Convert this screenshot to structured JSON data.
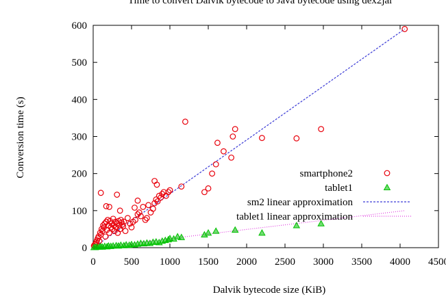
{
  "chart_data": {
    "type": "scatter",
    "title": "Time to convert Dalvik bytecode to Java bytecode using dex2jar",
    "xlabel": "Dalvik bytecode size (KiB)",
    "ylabel": "Conversion time (s)",
    "xlim": [
      0,
      4500
    ],
    "ylim": [
      0,
      600
    ],
    "xticks": [
      0,
      500,
      1000,
      1500,
      2000,
      2500,
      3000,
      3500,
      4000,
      4500
    ],
    "yticks": [
      0,
      100,
      200,
      300,
      400,
      500,
      600
    ],
    "legend_position": "lower-right, inside plot",
    "colors": {
      "smartphone2": "#e8000b",
      "tablet1": "#00c000",
      "sm2_fit": "#3b3bd6",
      "tablet1_fit": "#e040e0"
    },
    "series": [
      {
        "name": "smartphone2",
        "marker": "circle",
        "points": [
          [
            10,
            5
          ],
          [
            20,
            8
          ],
          [
            30,
            10
          ],
          [
            40,
            15
          ],
          [
            50,
            20
          ],
          [
            60,
            25
          ],
          [
            70,
            30
          ],
          [
            80,
            18
          ],
          [
            90,
            40
          ],
          [
            100,
            35
          ],
          [
            110,
            50
          ],
          [
            120,
            45
          ],
          [
            130,
            60
          ],
          [
            140,
            55
          ],
          [
            150,
            65
          ],
          [
            160,
            30
          ],
          [
            170,
            70
          ],
          [
            180,
            48
          ],
          [
            190,
            75
          ],
          [
            200,
            60
          ],
          [
            210,
            40
          ],
          [
            220,
            72
          ],
          [
            230,
            55
          ],
          [
            240,
            65
          ],
          [
            250,
            50
          ],
          [
            260,
            78
          ],
          [
            270,
            60
          ],
          [
            280,
            45
          ],
          [
            290,
            70
          ],
          [
            300,
            55
          ],
          [
            310,
            65
          ],
          [
            320,
            40
          ],
          [
            330,
            72
          ],
          [
            340,
            60
          ],
          [
            350,
            50
          ],
          [
            360,
            75
          ],
          [
            370,
            68
          ],
          [
            380,
            62
          ],
          [
            390,
            58
          ],
          [
            400,
            70
          ],
          [
            420,
            45
          ],
          [
            450,
            80
          ],
          [
            480,
            65
          ],
          [
            500,
            55
          ],
          [
            520,
            70
          ],
          [
            550,
            75
          ],
          [
            580,
            90
          ],
          [
            600,
            95
          ],
          [
            620,
            85
          ],
          [
            650,
            110
          ],
          [
            680,
            75
          ],
          [
            700,
            80
          ],
          [
            720,
            115
          ],
          [
            750,
            95
          ],
          [
            780,
            105
          ],
          [
            800,
            120
          ],
          [
            820,
            130
          ],
          [
            840,
            125
          ],
          [
            860,
            140
          ],
          [
            880,
            135
          ],
          [
            900,
            145
          ],
          [
            920,
            150
          ],
          [
            950,
            140
          ],
          [
            980,
            150
          ],
          [
            1000,
            155
          ],
          [
            100,
            148
          ],
          [
            170,
            112
          ],
          [
            210,
            110
          ],
          [
            310,
            143
          ],
          [
            350,
            100
          ],
          [
            540,
            108
          ],
          [
            580,
            127
          ],
          [
            800,
            180
          ],
          [
            830,
            170
          ],
          [
            1150,
            165
          ],
          [
            1200,
            340
          ],
          [
            1450,
            150
          ],
          [
            1500,
            160
          ],
          [
            1550,
            200
          ],
          [
            1600,
            225
          ],
          [
            1620,
            283
          ],
          [
            1700,
            260
          ],
          [
            1800,
            243
          ],
          [
            1820,
            300
          ],
          [
            1850,
            320
          ],
          [
            2200,
            296
          ],
          [
            2650,
            295
          ],
          [
            2970,
            320
          ],
          [
            4060,
            590
          ]
        ]
      },
      {
        "name": "tablet1",
        "marker": "triangle",
        "points": [
          [
            10,
            1
          ],
          [
            30,
            1
          ],
          [
            50,
            2
          ],
          [
            80,
            2
          ],
          [
            100,
            3
          ],
          [
            120,
            2
          ],
          [
            150,
            4
          ],
          [
            180,
            3
          ],
          [
            200,
            5
          ],
          [
            230,
            4
          ],
          [
            260,
            5
          ],
          [
            300,
            6
          ],
          [
            330,
            5
          ],
          [
            360,
            7
          ],
          [
            400,
            6
          ],
          [
            430,
            8
          ],
          [
            470,
            7
          ],
          [
            500,
            9
          ],
          [
            540,
            8
          ],
          [
            580,
            10
          ],
          [
            620,
            12
          ],
          [
            660,
            11
          ],
          [
            700,
            13
          ],
          [
            740,
            12
          ],
          [
            780,
            15
          ],
          [
            820,
            16
          ],
          [
            860,
            14
          ],
          [
            900,
            18
          ],
          [
            940,
            20
          ],
          [
            980,
            22
          ],
          [
            1000,
            25
          ],
          [
            1050,
            24
          ],
          [
            1100,
            30
          ],
          [
            1150,
            28
          ],
          [
            1450,
            35
          ],
          [
            1500,
            40
          ],
          [
            1600,
            45
          ],
          [
            1850,
            48
          ],
          [
            2200,
            40
          ],
          [
            2650,
            60
          ],
          [
            2970,
            65
          ]
        ]
      },
      {
        "name": "sm2 linear approximation",
        "line": "dashed",
        "points": [
          [
            0,
            0
          ],
          [
            4060,
            590
          ]
        ]
      },
      {
        "name": "tablet1 linear approximation",
        "line": "dotted",
        "points": [
          [
            0,
            0
          ],
          [
            4060,
            100
          ]
        ]
      }
    ]
  }
}
